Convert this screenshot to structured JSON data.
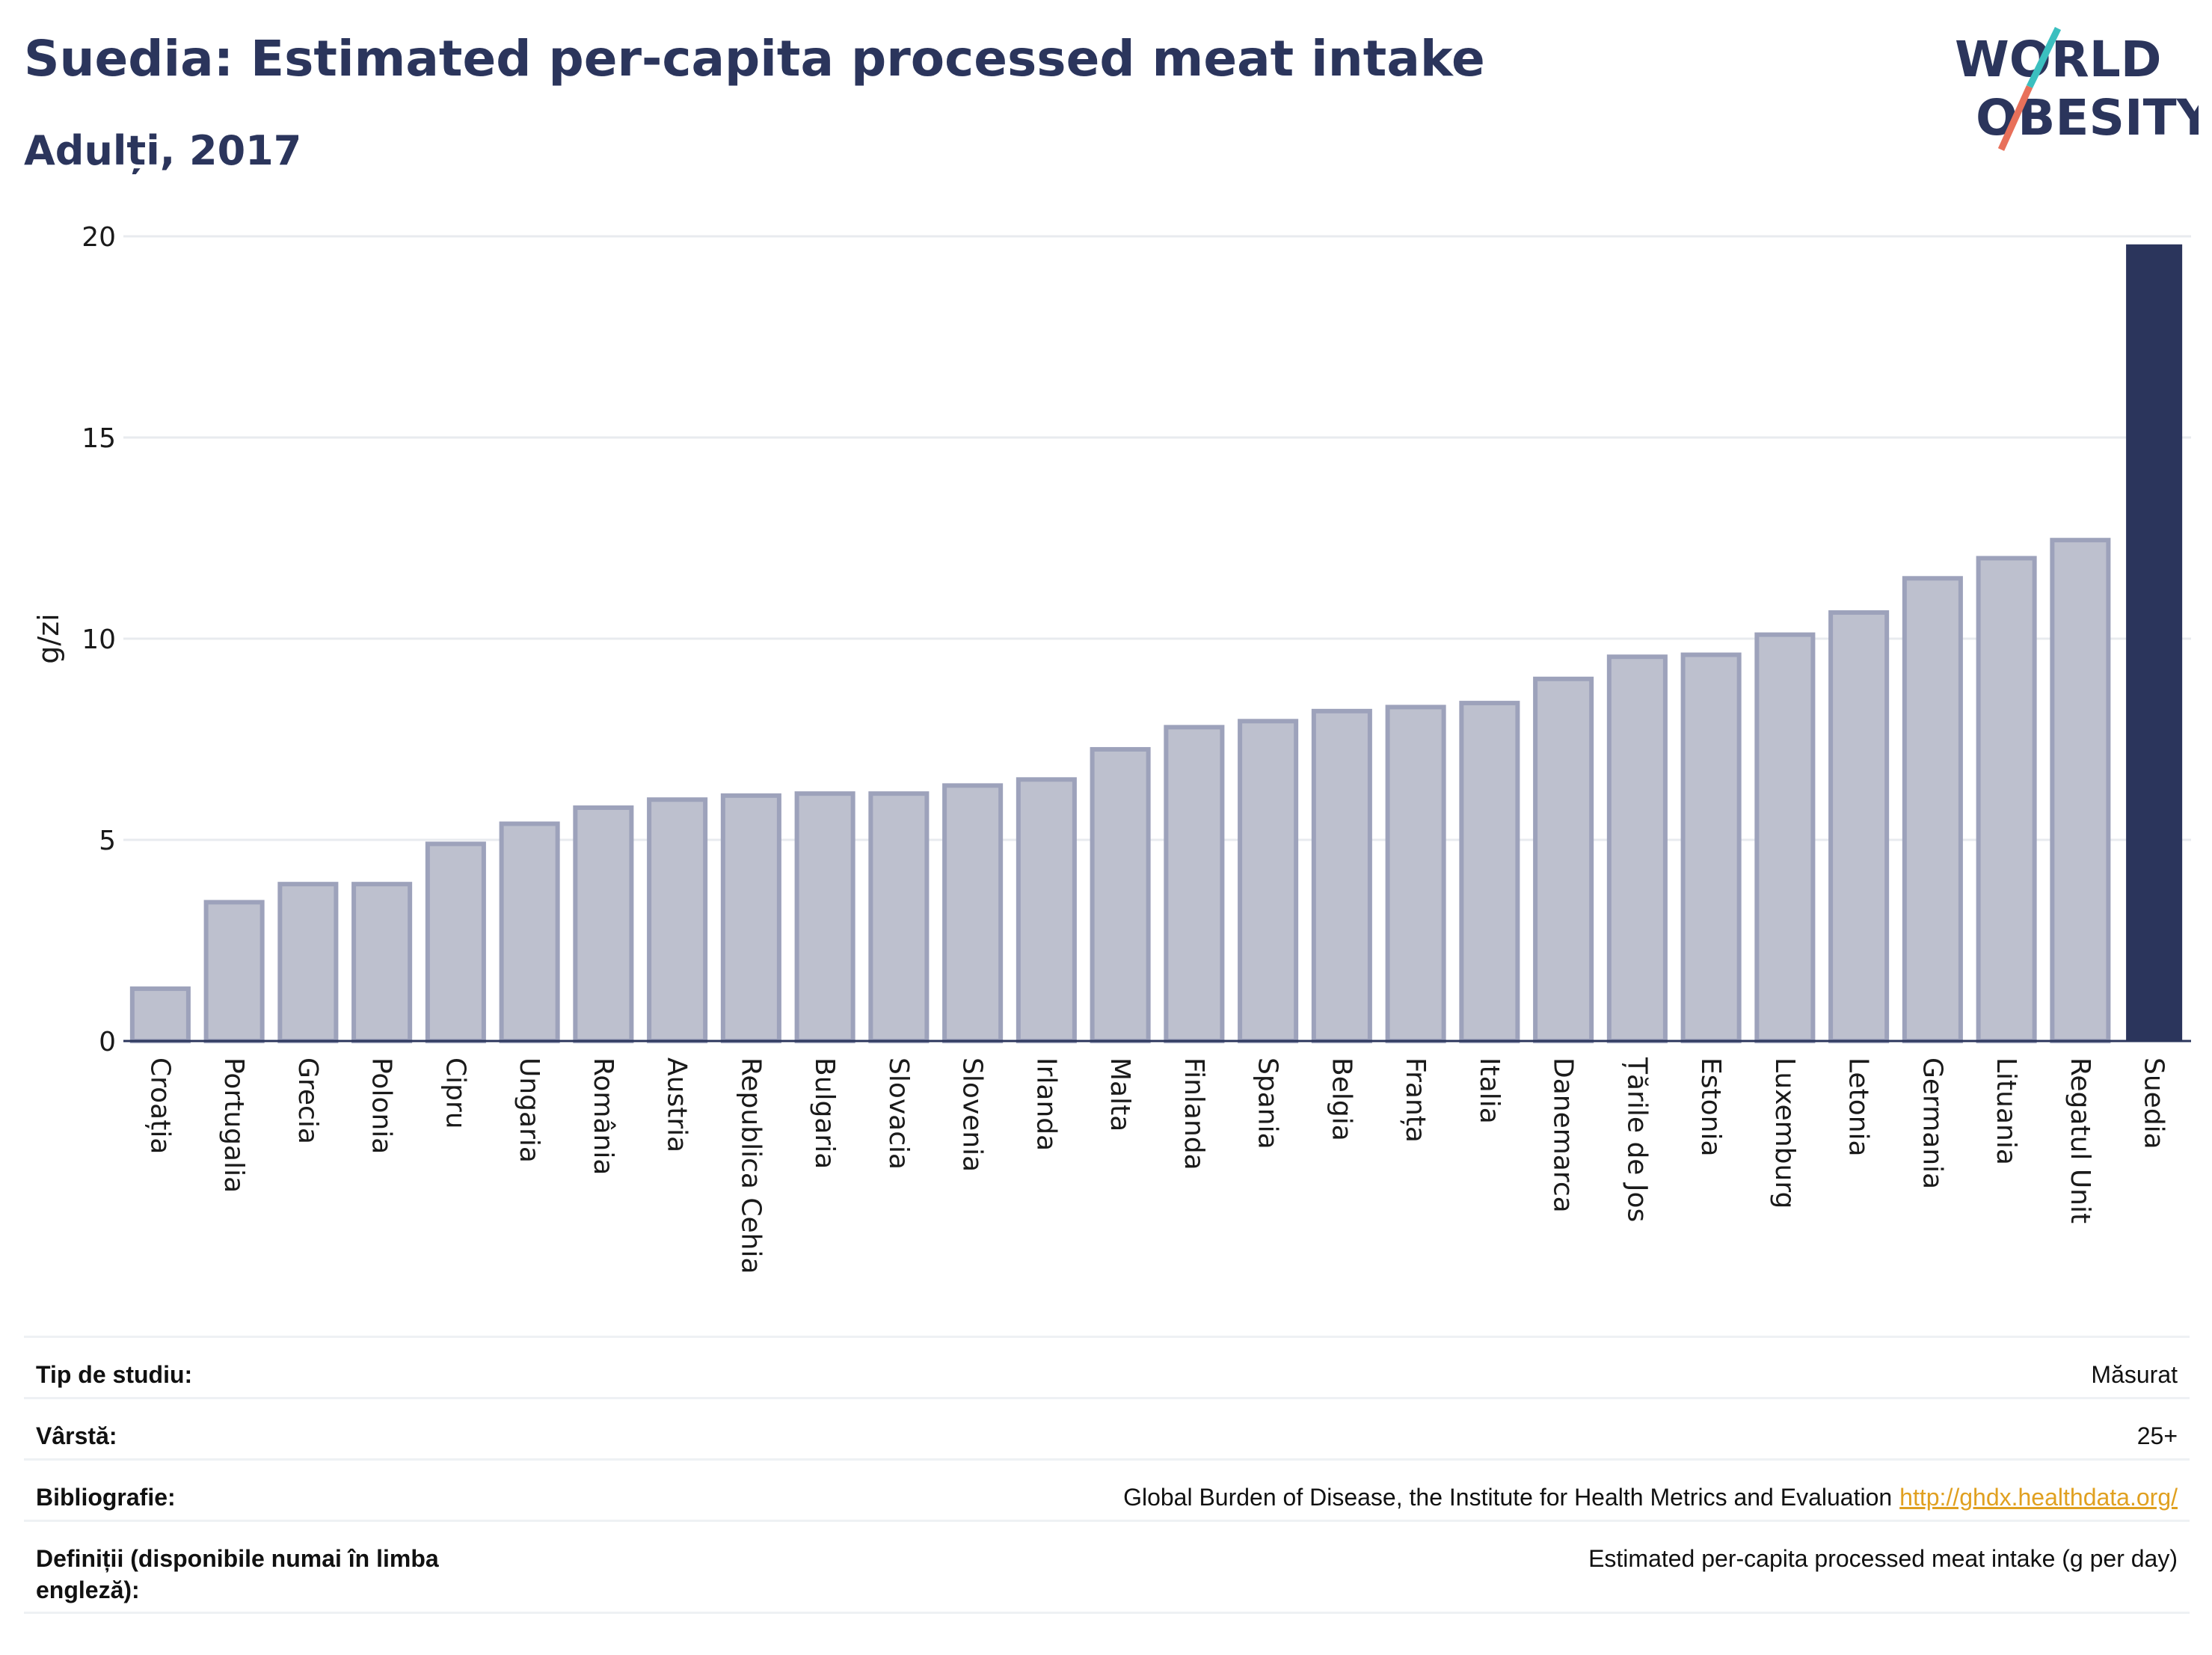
{
  "header": {
    "title": "Suedia: Estimated per-capita processed meat intake",
    "subtitle": "Adulți, 2017"
  },
  "logo": {
    "line1": "WORLD",
    "line2": "OBESITY",
    "colors": {
      "text": "#2b355c",
      "teal": "#3bbfbf",
      "coral": "#e8705a"
    }
  },
  "chart_data": {
    "type": "bar",
    "ylabel": "g/zi",
    "ylim": [
      0,
      20
    ],
    "yticks": [
      0,
      5,
      10,
      15,
      20
    ],
    "grid": true,
    "categories": [
      "Croația",
      "Portugalia",
      "Grecia",
      "Polonia",
      "Cipru",
      "Ungaria",
      "România",
      "Austria",
      "Republica Cehia",
      "Bulgaria",
      "Slovacia",
      "Slovenia",
      "Irlanda",
      "Malta",
      "Finlanda",
      "Spania",
      "Belgia",
      "Franța",
      "Italia",
      "Danemarca",
      "Țările de Jos",
      "Estonia",
      "Luxemburg",
      "Letonia",
      "Germania",
      "Lituania",
      "Regatul Unit",
      "Suedia"
    ],
    "values": [
      1.3,
      3.45,
      3.9,
      3.9,
      4.9,
      5.4,
      5.8,
      6.0,
      6.1,
      6.15,
      6.15,
      6.35,
      6.5,
      7.25,
      7.8,
      7.95,
      8.2,
      8.3,
      8.4,
      9.0,
      9.55,
      9.6,
      10.1,
      10.65,
      11.5,
      12.0,
      12.45,
      19.8
    ],
    "highlight": "Suedia",
    "colors": {
      "bar": "#bdc0ce",
      "bar_edge": "#9da2bb",
      "highlight": "#2b355c"
    }
  },
  "info": {
    "rows": [
      {
        "key": "Tip de studiu:",
        "value": "Măsurat"
      },
      {
        "key": "Vârstă:",
        "value": "25+"
      },
      {
        "key": "Bibliografie:",
        "value": "Global Burden of Disease, the Institute for Health Metrics and Evaluation",
        "link": "http://ghdx.healthdata.org/"
      },
      {
        "key": "Definiții (disponibile numai în limba engleză):",
        "value": "Estimated per-capita processed meat intake (g per day)"
      }
    ]
  }
}
